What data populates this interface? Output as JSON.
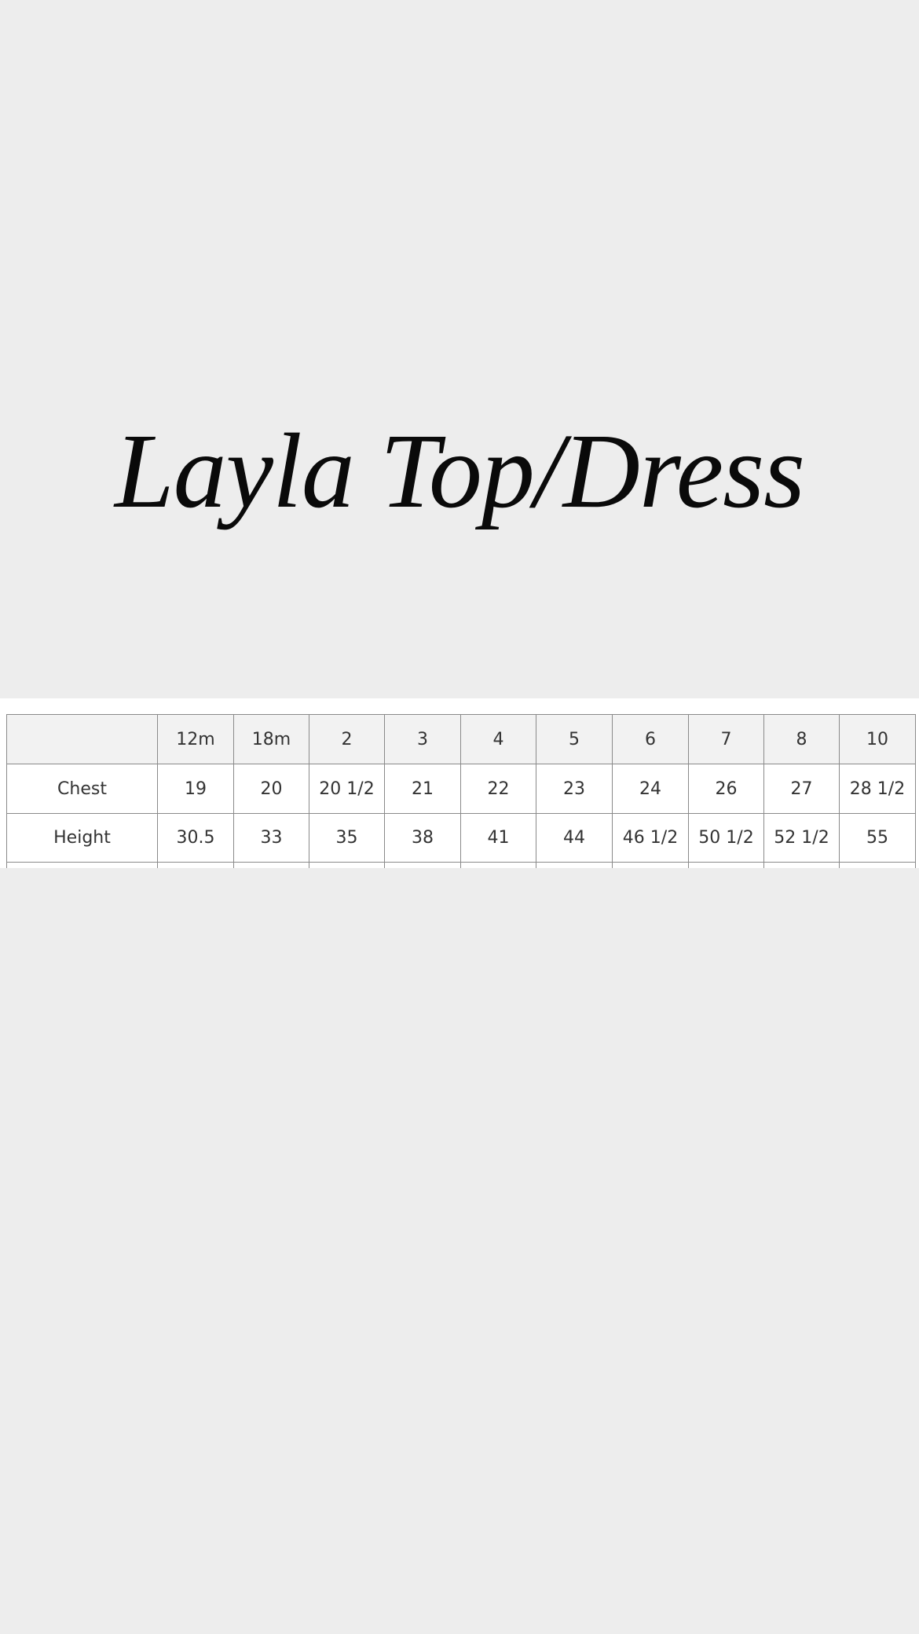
{
  "title": "Layla Top/Dress",
  "table": {
    "columns": [
      "12m",
      "18m",
      "2",
      "3",
      "4",
      "5",
      "6",
      "7",
      "8",
      "10"
    ],
    "rows": [
      {
        "label": "Chest",
        "values": [
          "19",
          "20",
          "20 1/2",
          "21",
          "22",
          "23",
          "24",
          "26",
          "27",
          "28 1/2"
        ]
      },
      {
        "label": "Height",
        "values": [
          "30.5",
          "33",
          "35",
          "38",
          "41",
          "44",
          "46 1/2",
          "50 1/2",
          "52 1/2",
          "55"
        ]
      }
    ]
  }
}
